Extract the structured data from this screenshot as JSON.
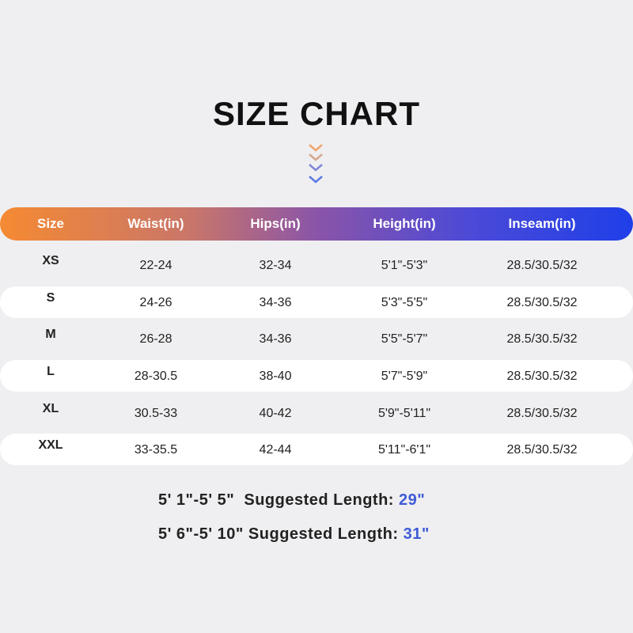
{
  "title": "SIZE CHART",
  "colors": {
    "gradient_start": "#f58a32",
    "gradient_end": "#1f3fe8",
    "highlight": "#3f5bd6"
  },
  "icons": [
    "chevron-down-icon",
    "chevron-down-icon",
    "chevron-down-icon",
    "chevron-down-icon"
  ],
  "table": {
    "headers": [
      "Size",
      "Waist(in)",
      "Hips(in)",
      "Height(in)",
      "Inseam(in)"
    ],
    "rows": [
      [
        "XS",
        "22-24",
        "32-34",
        "5'1\"-5'3\"",
        "28.5/30.5/32"
      ],
      [
        "S",
        "24-26",
        "34-36",
        "5'3\"-5'5\"",
        "28.5/30.5/32"
      ],
      [
        "M",
        "26-28",
        "34-36",
        "5'5\"-5'7\"",
        "28.5/30.5/32"
      ],
      [
        "L",
        "28-30.5",
        "38-40",
        "5'7\"-5'9\"",
        "28.5/30.5/32"
      ],
      [
        "XL",
        "30.5-33",
        "40-42",
        "5'9\"-5'11\"",
        "28.5/30.5/32"
      ],
      [
        "XXL",
        "33-35.5",
        "42-44",
        "5'11\"-6'1\"",
        "28.5/30.5/32"
      ]
    ]
  },
  "notes": [
    {
      "range": "5' 1\"-5' 5\"  ",
      "label": "Suggested Length: ",
      "value": "29\""
    },
    {
      "range": "5' 6\"-5' 10\" ",
      "label": "Suggested Length: ",
      "value": "31\""
    }
  ]
}
